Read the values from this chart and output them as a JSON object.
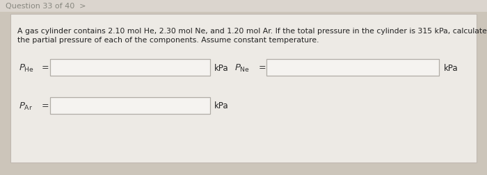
{
  "title_text": "Question 33 of 40  >",
  "q_line1": "A gas cylinder contains 2.10 mol He, 2.30 mol Ne, and 1.20 mol Ar. If the total pressure in the cylinder is 315 kPa, calculate",
  "q_line2": "the partial pressure of each of the components. Assume constant temperature.",
  "unit": "kPa",
  "bg_color": "#ccc5ba",
  "card_color": "#edeae5",
  "box_fill": "#f5f3f0",
  "box_edge": "#b0aca6",
  "title_fg": "#888880",
  "text_color": "#222222",
  "label_color": "#333333"
}
